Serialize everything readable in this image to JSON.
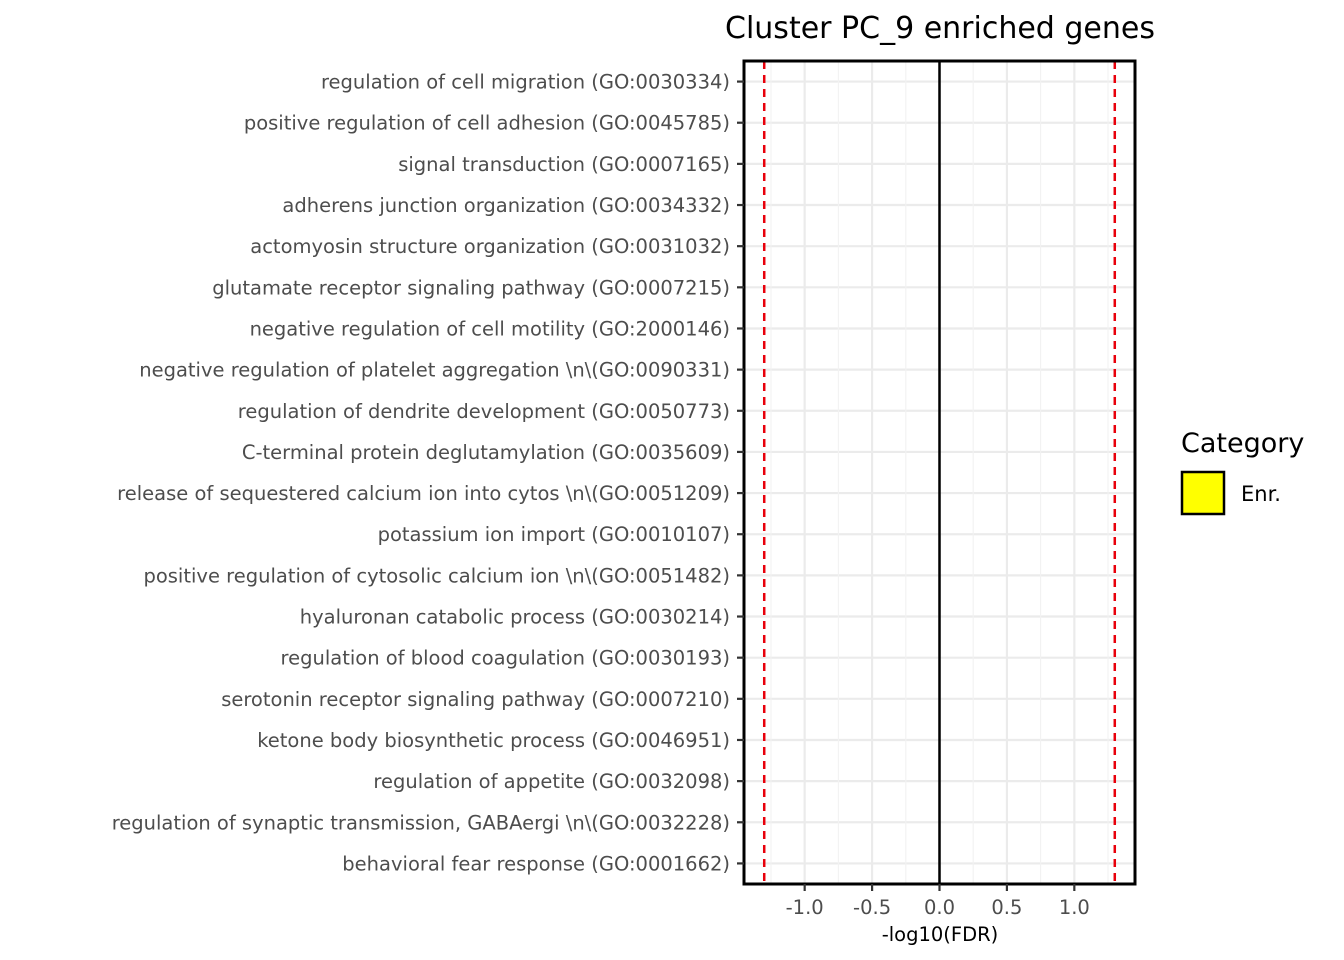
{
  "chart_data": {
    "type": "bar",
    "orientation": "horizontal",
    "title": "Cluster PC_9 enriched genes",
    "xlabel": "-log10(FDR)",
    "ylabel": "",
    "xlim": [
      -1.45,
      1.45
    ],
    "x_ticks": [
      -1.0,
      -0.5,
      0.0,
      0.5,
      1.0
    ],
    "x_tick_labels": [
      "-1.0",
      "-0.5",
      "0.0",
      "0.5",
      "1.0"
    ],
    "grid": true,
    "zero_line": 0,
    "threshold_lines": [
      -1.3,
      1.3
    ],
    "threshold_color": "#e8000b",
    "categories": [
      "regulation of cell migration (GO:0030334)",
      "positive regulation of cell adhesion (GO:0045785)",
      "signal transduction (GO:0007165)",
      "adherens junction organization (GO:0034332)",
      "actomyosin structure organization (GO:0031032)",
      "glutamate receptor signaling pathway (GO:0007215)",
      "negative regulation of cell motility (GO:2000146)",
      "negative regulation of platelet aggregation  \\n\\(GO:0090331)",
      "regulation of dendrite development (GO:0050773)",
      "C-terminal protein deglutamylation (GO:0035609)",
      "release of sequestered calcium ion into cytos \\n\\(GO:0051209)",
      "potassium ion import (GO:0010107)",
      "positive regulation of cytosolic calcium ion  \\n\\(GO:0051482)",
      "hyaluronan catabolic process (GO:0030214)",
      "regulation of blood coagulation (GO:0030193)",
      "serotonin receptor signaling pathway (GO:0007210)",
      "ketone body biosynthetic process (GO:0046951)",
      "regulation of appetite (GO:0032098)",
      "regulation of synaptic transmission, GABAergi \\n\\(GO:0032228)",
      "behavioral fear response (GO:0001662)"
    ],
    "values": [
      0,
      0,
      0,
      0,
      0,
      0,
      0,
      0,
      0,
      0,
      0,
      0,
      0,
      0,
      0,
      0,
      0,
      0,
      0,
      0
    ],
    "legend": {
      "title": "Category",
      "entries": [
        {
          "label": "Enr.",
          "color": "#ffff00"
        }
      ],
      "position": "right"
    }
  }
}
